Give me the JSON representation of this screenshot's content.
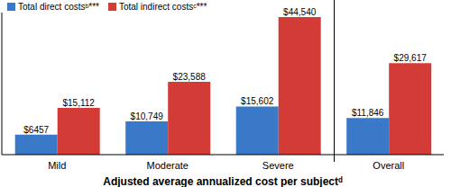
{
  "chart_data": {
    "type": "bar",
    "categories": [
      "Mild",
      "Moderate",
      "Severe",
      "Overall"
    ],
    "x_label": "Adjusted average annualized cost per subjectᵈ",
    "series": [
      {
        "name": "Total direct costsᵇ***",
        "color": "#3a78c8",
        "values": [
          6457,
          10749,
          15602,
          11846
        ],
        "value_labels": [
          "$6457",
          "$10,749",
          "$15,602",
          "$11,846"
        ]
      },
      {
        "name": "Total indirect costsᶜ***",
        "color": "#d33b37",
        "values": [
          15112,
          23588,
          44540,
          29617
        ],
        "value_labels": [
          "$15,112",
          "$23,588",
          "$44,540",
          "$29,617"
        ]
      }
    ],
    "ylim": [
      0,
      46000
    ],
    "yticks": [
      0
    ],
    "data_labels": true,
    "tick_labels": "x",
    "legend": "top-left",
    "grid": false
  }
}
